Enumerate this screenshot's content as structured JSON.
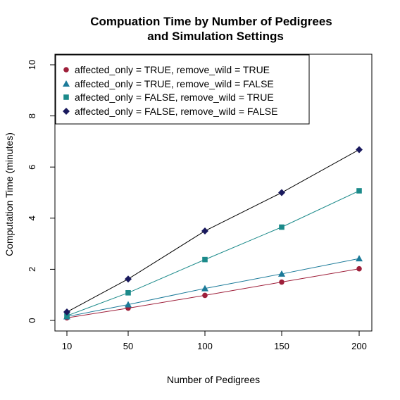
{
  "chart_data": {
    "type": "line",
    "title": "Compuation Time by Number of Pedigrees",
    "subtitle": "and Simulation Settings",
    "xlabel": "Number of Pedigrees",
    "ylabel": "Computation Time (minutes)",
    "x": [
      10,
      50,
      100,
      150,
      200
    ],
    "xticks": [
      "10",
      "50",
      "100",
      "150",
      "200"
    ],
    "yticks": [
      "0",
      "2",
      "4",
      "6",
      "8",
      "10"
    ],
    "ylim": [
      0,
      10
    ],
    "grid": false,
    "legend_position": "top-left",
    "series": [
      {
        "name": "affected_only = TRUE, remove_wild = TRUE",
        "values": [
          0.1,
          0.48,
          0.98,
          1.5,
          2.02
        ],
        "color": "#9e1f3a",
        "line_color": "#9e1f3a",
        "marker": "circle"
      },
      {
        "name": "affected_only = TRUE, remove_wild = FALSE",
        "values": [
          0.15,
          0.62,
          1.25,
          1.82,
          2.42
        ],
        "color": "#1b7a99",
        "line_color": "#1b7a99",
        "marker": "triangle"
      },
      {
        "name": "affected_only = FALSE, remove_wild = TRUE",
        "values": [
          0.18,
          1.08,
          2.38,
          3.65,
          5.07
        ],
        "color": "#1b8a8a",
        "line_color": "#1b8a8a",
        "marker": "square"
      },
      {
        "name": "affected_only = FALSE, remove_wild = FALSE",
        "values": [
          0.33,
          1.62,
          3.5,
          5.0,
          6.68
        ],
        "color": "#1a1a5e",
        "line_color": "#000000",
        "marker": "diamond"
      }
    ]
  }
}
